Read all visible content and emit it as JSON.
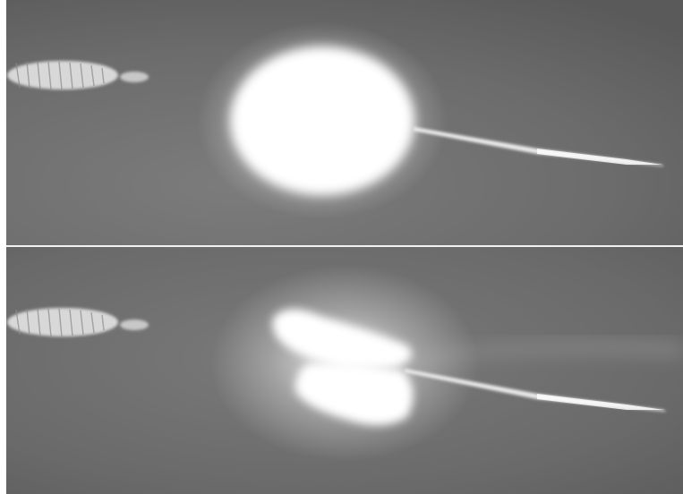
{
  "figure": {
    "panels": [
      {
        "id": "top",
        "subject": "spherical-plasma-glow"
      },
      {
        "id": "bottom",
        "subject": "split-plasma-glow"
      }
    ],
    "colors": {
      "background": "#6b6b6b",
      "glow": "#ffffff",
      "divider": "#f2f2f2"
    }
  }
}
